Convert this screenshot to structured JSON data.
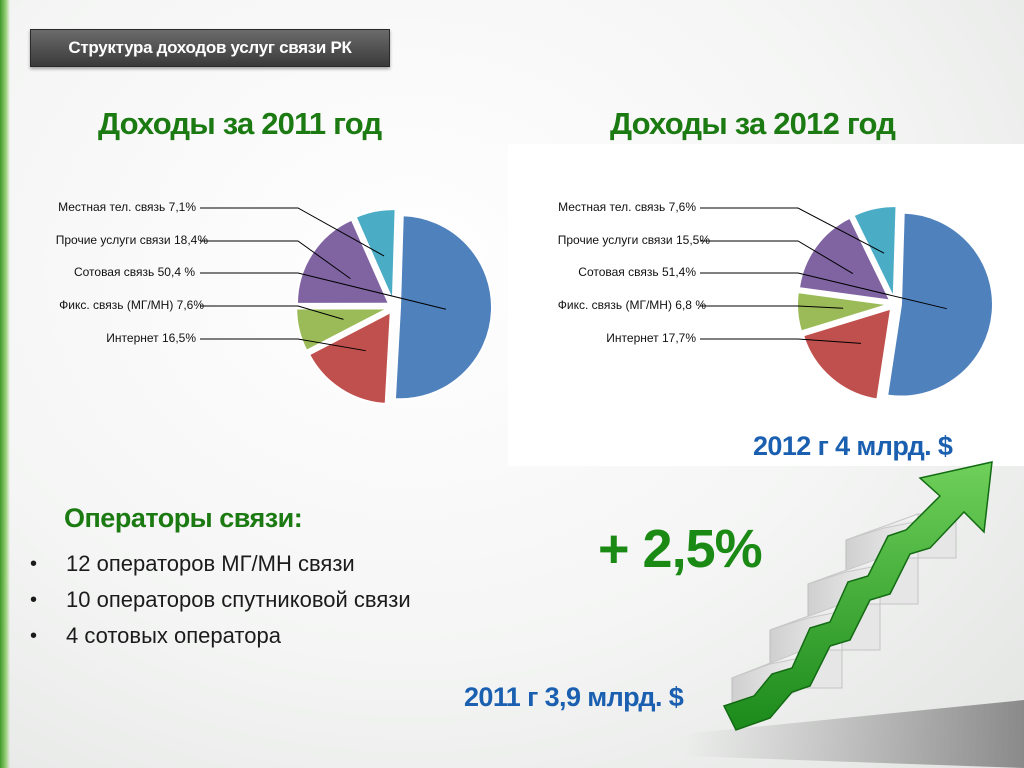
{
  "header": {
    "title": "Структура доходов услуг связи РК"
  },
  "operators": {
    "heading": "Операторы связи:",
    "items": [
      "12 операторов МГ/МН связи",
      "10 операторов спутниковой связи",
      "4 сотовых оператора"
    ]
  },
  "growth_label": "+ 2,5%",
  "totals": {
    "y2011": "2011 г 3,9 млрд. $",
    "y2012": "2012 г 4 млрд. $"
  },
  "colors": {
    "blue": "#4f81bd",
    "red": "#c0504d",
    "green": "#9bbb59",
    "purple": "#8064a2",
    "cyan": "#4bacc6",
    "heading_green": "#1c7a12",
    "total_blue": "#1a5fb0"
  },
  "chart_data": [
    {
      "type": "pie",
      "title": "Доходы за 2011 год",
      "slices": [
        {
          "label": "Местная тел. связь 7,1%",
          "value": 7.1,
          "color": "cyan"
        },
        {
          "label": "Прочие услуги связи 18,4%",
          "value": 18.4,
          "color": "purple"
        },
        {
          "label": "Сотовая связь 50,4 %",
          "value": 50.4,
          "color": "blue"
        },
        {
          "label": "Фикс. связь (МГ/МН) 7,6%",
          "value": 7.6,
          "color": "green"
        },
        {
          "label": "Интернет 16,5%",
          "value": 16.5,
          "color": "red"
        }
      ]
    },
    {
      "type": "pie",
      "title": "Доходы за 2012 год",
      "slices": [
        {
          "label": "Местная тел. связь 7,6%",
          "value": 7.6,
          "color": "cyan"
        },
        {
          "label": "Прочие услуги связи 15,5%",
          "value": 15.5,
          "color": "purple"
        },
        {
          "label": "Сотовая связь 51,4%",
          "value": 51.4,
          "color": "blue"
        },
        {
          "label": "Фикс. связь (МГ/МН) 6,8 %",
          "value": 6.8,
          "color": "green"
        },
        {
          "label": "Интернет 17,7%",
          "value": 17.7,
          "color": "red"
        }
      ]
    }
  ]
}
